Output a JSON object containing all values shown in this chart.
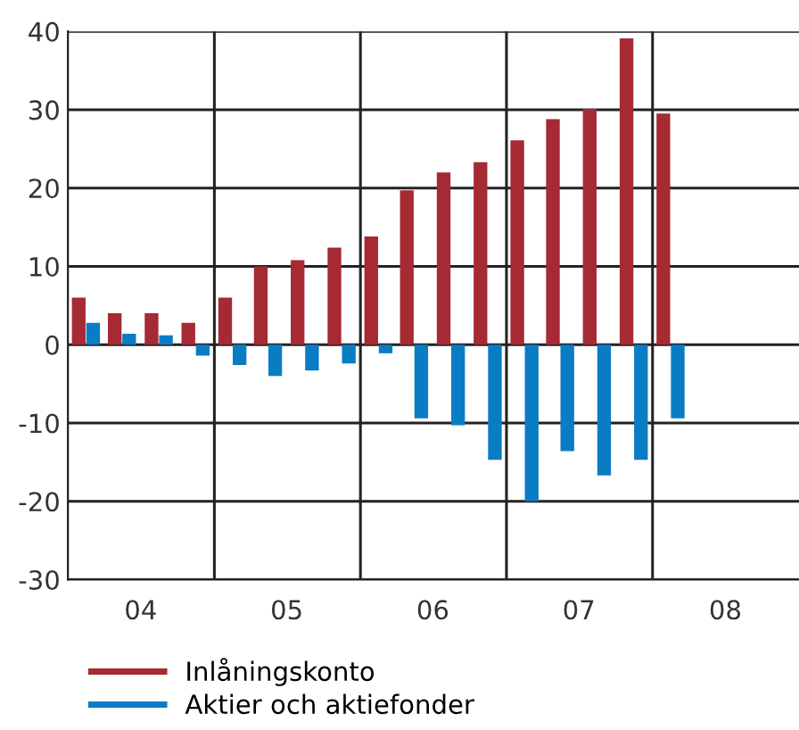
{
  "chart_data": {
    "type": "bar",
    "x": [
      "2004-02-15",
      "2004-05-15",
      "2004-08-15",
      "2004-11-15",
      "2005-02-15",
      "2005-05-15",
      "2005-08-15",
      "2005-11-15",
      "2006-02-15",
      "2006-05-15",
      "2006-08-15",
      "2006-11-15",
      "2007-02-15",
      "2007-05-15",
      "2007-08-15",
      "2007-11-15",
      "2008-02-15"
    ],
    "series": [
      {
        "name": "Inlåningskonto",
        "color": "#a52a33",
        "values": [
          6.0,
          4.0,
          4.0,
          2.8,
          6.0,
          10.0,
          10.8,
          12.4,
          13.8,
          19.7,
          22.0,
          23.3,
          26.1,
          28.8,
          30.1,
          39.1,
          29.5
        ]
      },
      {
        "name": "Aktier och aktiefonder",
        "color": "#0a7cc4",
        "values": [
          2.8,
          1.4,
          1.2,
          -1.4,
          -2.6,
          -4.0,
          -3.3,
          -2.4,
          -1.1,
          -9.4,
          -10.3,
          -14.7,
          -20.0,
          -13.6,
          -16.7,
          -14.7,
          -9.4
        ]
      }
    ],
    "xlim": [
      "2004-01-01",
      "2009-01-01"
    ],
    "xticks": [
      {
        "value": "2004-07-01",
        "label": "04"
      },
      {
        "value": "2005-07-01",
        "label": "05"
      },
      {
        "value": "2006-07-01",
        "label": "06"
      },
      {
        "value": "2007-07-01",
        "label": "07"
      },
      {
        "value": "2008-07-01",
        "label": "08"
      }
    ],
    "ylim": [
      -30,
      40
    ],
    "yticks": [
      -30,
      -20,
      -10,
      0,
      10,
      20,
      30,
      40
    ],
    "ref_lines": [
      {
        "axis": "x",
        "value": "2005-01-01",
        "label": null,
        "color": "#222222"
      },
      {
        "axis": "x",
        "value": "2006-01-01",
        "label": null,
        "color": "#222222"
      },
      {
        "axis": "x",
        "value": "2007-01-01",
        "label": null,
        "color": "#222222"
      },
      {
        "axis": "x",
        "value": "2008-01-01",
        "label": null,
        "color": "#222222"
      }
    ],
    "grid": "y",
    "legend": "bottom"
  }
}
